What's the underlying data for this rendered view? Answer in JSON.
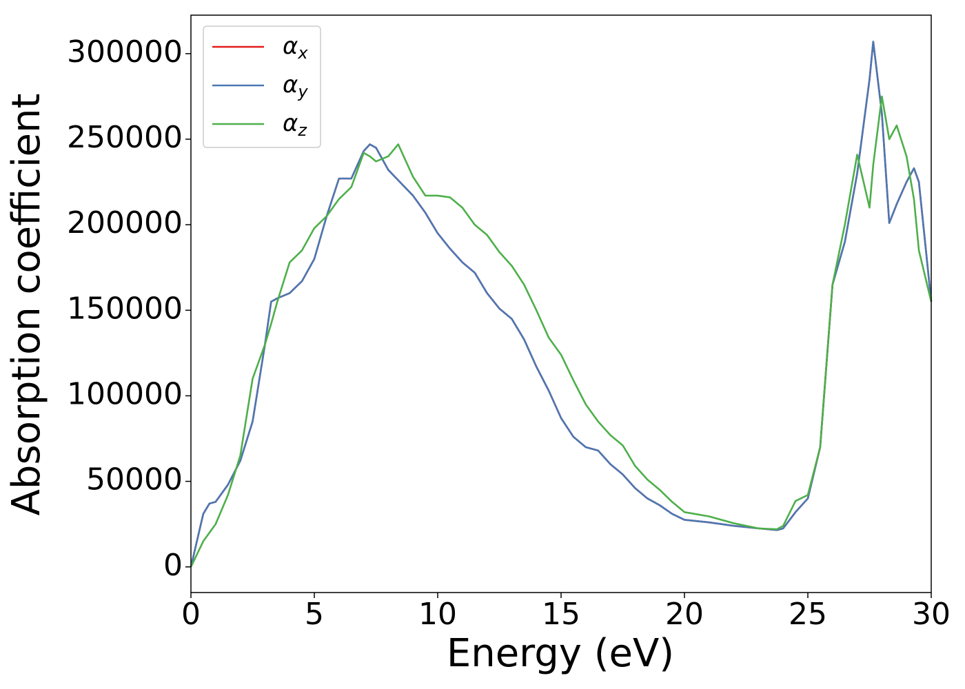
{
  "chart_data": {
    "type": "line",
    "xlabel": "Energy (eV)",
    "ylabel": "Absorption coefficient",
    "x": [
      0,
      0.5,
      0.75,
      1,
      1.5,
      2,
      2.5,
      3,
      3.25,
      3.5,
      4,
      4.5,
      5,
      5.5,
      6,
      6.5,
      7,
      7.25,
      7.5,
      8,
      8.4,
      9,
      9.5,
      10,
      10.5,
      11,
      11.5,
      12,
      12.5,
      13,
      13.5,
      14,
      14.5,
      15,
      15.5,
      16,
      16.5,
      17,
      17.5,
      18,
      18.5,
      19,
      19.5,
      20,
      21,
      22,
      23,
      23.75,
      24,
      24.5,
      25,
      25.5,
      26,
      26.5,
      27,
      27.5,
      27.65,
      28,
      28.3,
      28.6,
      29,
      29.3,
      29.5,
      30
    ],
    "series": [
      {
        "name": "α_x",
        "color": "#e41a1c",
        "values": [
          0,
          31000,
          37000,
          38000,
          48000,
          62000,
          85000,
          130000,
          155000,
          157000,
          160000,
          167000,
          180000,
          205000,
          227000,
          227000,
          243000,
          247000,
          245000,
          232000,
          226000,
          217000,
          207000,
          195000,
          186000,
          178000,
          172000,
          160000,
          151000,
          145000,
          133000,
          117000,
          103000,
          87000,
          76000,
          70000,
          68000,
          60000,
          54000,
          46000,
          40000,
          36000,
          31000,
          27500,
          26000,
          24000,
          22500,
          21500,
          22500,
          32000,
          40000,
          70000,
          165000,
          190000,
          230000,
          285000,
          307000,
          265000,
          201000,
          212000,
          225000,
          233000,
          225000,
          155000
        ]
      },
      {
        "name": "α_y",
        "color": "#4a78b4",
        "values": [
          0,
          31000,
          37000,
          38000,
          48000,
          62000,
          85000,
          130000,
          155000,
          157000,
          160000,
          167000,
          180000,
          205000,
          227000,
          227000,
          243000,
          247000,
          245000,
          232000,
          226000,
          217000,
          207000,
          195000,
          186000,
          178000,
          172000,
          160000,
          151000,
          145000,
          133000,
          117000,
          103000,
          87000,
          76000,
          70000,
          68000,
          60000,
          54000,
          46000,
          40000,
          36000,
          31000,
          27500,
          26000,
          24000,
          22500,
          21500,
          22500,
          32000,
          40000,
          70000,
          165000,
          190000,
          230000,
          285000,
          307000,
          265000,
          201000,
          212000,
          225000,
          233000,
          225000,
          155000
        ]
      },
      {
        "name": "α_z",
        "color": "#4daf4a",
        "values": [
          0,
          15000,
          20000,
          25000,
          42000,
          65000,
          110000,
          130000,
          142000,
          155000,
          178000,
          185000,
          198000,
          205000,
          215000,
          222000,
          242000,
          240000,
          237000,
          240000,
          247000,
          228000,
          217000,
          217000,
          216000,
          210000,
          200000,
          194000,
          184000,
          176000,
          165000,
          150000,
          134000,
          124000,
          109000,
          95000,
          85000,
          77000,
          71000,
          59000,
          51000,
          45000,
          38000,
          32000,
          29500,
          25500,
          22500,
          22000,
          24000,
          38500,
          42000,
          70000,
          165000,
          200000,
          241000,
          210000,
          235000,
          275000,
          250000,
          258000,
          240000,
          215000,
          185000,
          155000
        ]
      }
    ],
    "xlim": [
      0,
      30
    ],
    "xticks": [
      0,
      5,
      10,
      15,
      20,
      25,
      30
    ],
    "ylim": [
      -15000,
      322500
    ],
    "yticks": [
      0,
      50000,
      100000,
      150000,
      200000,
      250000,
      300000
    ],
    "legend": "upper left"
  }
}
